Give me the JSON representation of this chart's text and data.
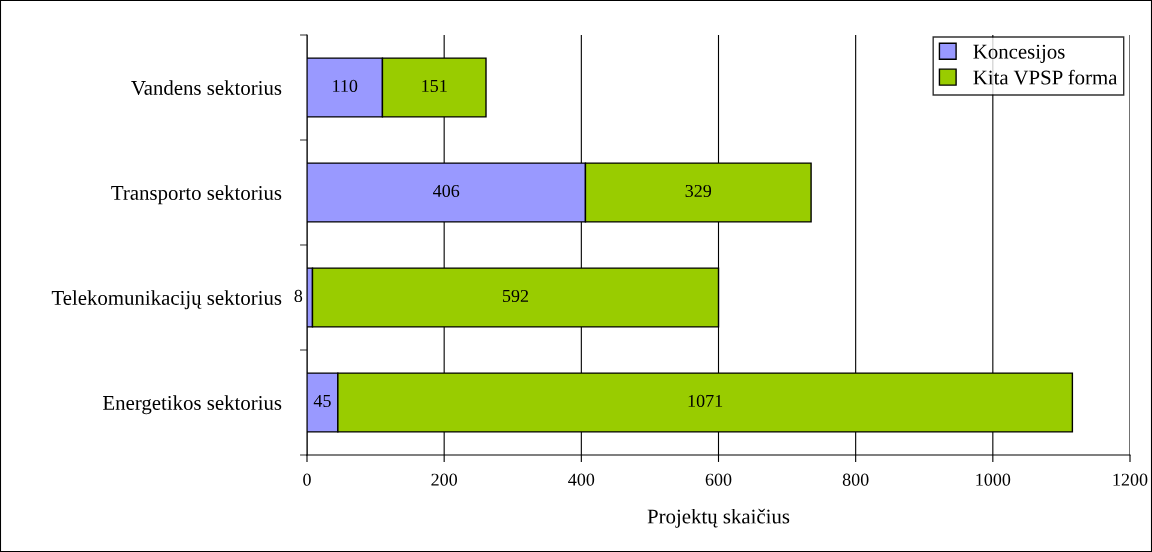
{
  "chart_data": {
    "type": "bar",
    "orientation": "horizontal",
    "stacked": true,
    "xlabel": "Projektų skaičius",
    "categories": [
      "Vandens sektorius",
      "Transporto sektorius",
      "Telekomunikacijų sektorius",
      "Energetikos sektorius"
    ],
    "series": [
      {
        "name": "Koncesijos",
        "color": "#9999ff",
        "values": [
          110,
          406,
          8,
          45
        ]
      },
      {
        "name": "Kita VPSP forma",
        "color": "#99cc00",
        "values": [
          151,
          329,
          592,
          1071
        ]
      }
    ],
    "xlim": [
      0,
      1200
    ],
    "xticks": [
      0,
      200,
      400,
      600,
      800,
      1000,
      1200
    ],
    "grid": "x",
    "legend": "top right",
    "data_labels": true
  }
}
